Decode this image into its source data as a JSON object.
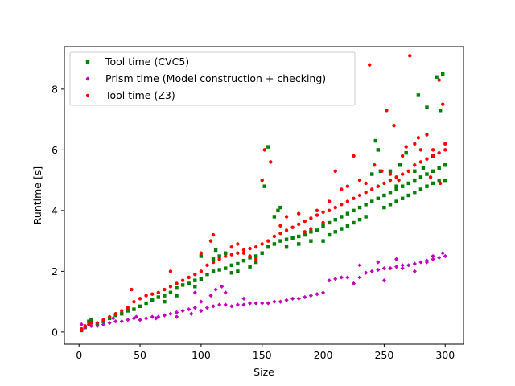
{
  "chart_data": {
    "type": "scatter",
    "title": "",
    "xlabel": "Size",
    "ylabel": "Runtime [s]",
    "xlim": [
      -12,
      315
    ],
    "ylim": [
      -0.4,
      9.4
    ],
    "xticks": [
      0,
      50,
      100,
      150,
      200,
      250,
      300
    ],
    "yticks": [
      0,
      2,
      4,
      6,
      8
    ],
    "grid": false,
    "legend_position": "top-left",
    "series": [
      {
        "name": "Tool time (CVC5)",
        "color": "#008000",
        "marker": "square",
        "points": [
          [
            2,
            0.05
          ],
          [
            5,
            0.15
          ],
          [
            8,
            0.35
          ],
          [
            10,
            0.4
          ],
          [
            15,
            0.25
          ],
          [
            20,
            0.35
          ],
          [
            25,
            0.45
          ],
          [
            30,
            0.55
          ],
          [
            35,
            0.6
          ],
          [
            40,
            0.7
          ],
          [
            45,
            0.75
          ],
          [
            50,
            0.85
          ],
          [
            55,
            0.95
          ],
          [
            60,
            1.05
          ],
          [
            65,
            1.15
          ],
          [
            70,
            1.2
          ],
          [
            75,
            1.3
          ],
          [
            80,
            1.45
          ],
          [
            85,
            1.55
          ],
          [
            90,
            1.6
          ],
          [
            95,
            1.7
          ],
          [
            100,
            1.75
          ],
          [
            105,
            1.9
          ],
          [
            110,
            2.0
          ],
          [
            115,
            2.05
          ],
          [
            120,
            2.1
          ],
          [
            125,
            2.2
          ],
          [
            130,
            2.25
          ],
          [
            135,
            2.35
          ],
          [
            140,
            2.45
          ],
          [
            145,
            2.5
          ],
          [
            150,
            2.6
          ],
          [
            155,
            2.8
          ],
          [
            160,
            2.9
          ],
          [
            165,
            3.0
          ],
          [
            170,
            3.05
          ],
          [
            175,
            3.1
          ],
          [
            180,
            3.15
          ],
          [
            185,
            3.2
          ],
          [
            190,
            3.3
          ],
          [
            195,
            3.35
          ],
          [
            200,
            3.5
          ],
          [
            205,
            3.6
          ],
          [
            210,
            3.7
          ],
          [
            215,
            3.8
          ],
          [
            220,
            3.9
          ],
          [
            225,
            4.0
          ],
          [
            230,
            4.1
          ],
          [
            235,
            4.2
          ],
          [
            240,
            4.3
          ],
          [
            245,
            4.4
          ],
          [
            250,
            4.5
          ],
          [
            255,
            4.6
          ],
          [
            260,
            4.7
          ],
          [
            265,
            4.8
          ],
          [
            270,
            4.9
          ],
          [
            275,
            5.0
          ],
          [
            280,
            5.1
          ],
          [
            285,
            5.2
          ],
          [
            290,
            5.3
          ],
          [
            295,
            5.4
          ],
          [
            300,
            5.0
          ],
          [
            155,
            6.1
          ],
          [
            152,
            4.8
          ],
          [
            160,
            3.8
          ],
          [
            163,
            4.0
          ],
          [
            165,
            4.1
          ],
          [
            243,
            6.3
          ],
          [
            245,
            6.0
          ],
          [
            260,
            4.8
          ],
          [
            263,
            5.5
          ],
          [
            268,
            5.9
          ],
          [
            278,
            7.8
          ],
          [
            285,
            7.4
          ],
          [
            293,
            8.4
          ],
          [
            296,
            7.3
          ],
          [
            298,
            8.5
          ],
          [
            300,
            5.5
          ],
          [
            240,
            5.2
          ],
          [
            247,
            5.3
          ],
          [
            255,
            5.3
          ],
          [
            275,
            5.3
          ],
          [
            282,
            5.4
          ],
          [
            290,
            5.8
          ],
          [
            110,
            2.4
          ],
          [
            115,
            2.5
          ],
          [
            120,
            2.6
          ],
          [
            100,
            2.5
          ],
          [
            112,
            2.7
          ],
          [
            70,
            1.0
          ],
          [
            80,
            1.2
          ],
          [
            95,
            1.5
          ],
          [
            125,
            1.95
          ],
          [
            130,
            2.0
          ],
          [
            140,
            2.15
          ],
          [
            145,
            2.3
          ],
          [
            170,
            2.8
          ],
          [
            180,
            2.9
          ],
          [
            190,
            3.0
          ],
          [
            200,
            3.0
          ],
          [
            205,
            3.2
          ],
          [
            210,
            3.3
          ],
          [
            215,
            3.4
          ],
          [
            220,
            3.5
          ],
          [
            225,
            3.6
          ],
          [
            230,
            3.7
          ],
          [
            235,
            3.8
          ],
          [
            250,
            4.1
          ],
          [
            255,
            4.2
          ],
          [
            260,
            4.3
          ],
          [
            265,
            4.4
          ],
          [
            270,
            4.5
          ],
          [
            275,
            4.6
          ],
          [
            280,
            4.7
          ],
          [
            285,
            4.8
          ],
          [
            290,
            4.9
          ],
          [
            295,
            5.0
          ]
        ]
      },
      {
        "name": "Prism time (Model construction + checking)",
        "color": "#bf00bf",
        "marker": "diamond",
        "points": [
          [
            2,
            0.25
          ],
          [
            5,
            0.15
          ],
          [
            10,
            0.2
          ],
          [
            15,
            0.2
          ],
          [
            20,
            0.25
          ],
          [
            25,
            0.3
          ],
          [
            30,
            0.35
          ],
          [
            35,
            0.35
          ],
          [
            40,
            0.4
          ],
          [
            45,
            0.45
          ],
          [
            50,
            0.4
          ],
          [
            55,
            0.45
          ],
          [
            60,
            0.5
          ],
          [
            65,
            0.5
          ],
          [
            70,
            0.55
          ],
          [
            75,
            0.6
          ],
          [
            80,
            0.65
          ],
          [
            85,
            0.7
          ],
          [
            90,
            0.75
          ],
          [
            95,
            0.8
          ],
          [
            100,
            0.7
          ],
          [
            105,
            0.8
          ],
          [
            110,
            0.85
          ],
          [
            115,
            0.9
          ],
          [
            120,
            0.9
          ],
          [
            125,
            0.85
          ],
          [
            130,
            0.9
          ],
          [
            135,
            0.9
          ],
          [
            140,
            0.95
          ],
          [
            145,
            0.95
          ],
          [
            150,
            0.95
          ],
          [
            155,
            0.95
          ],
          [
            160,
            1.0
          ],
          [
            165,
            1.0
          ],
          [
            170,
            1.05
          ],
          [
            175,
            1.1
          ],
          [
            180,
            1.1
          ],
          [
            185,
            1.15
          ],
          [
            190,
            1.2
          ],
          [
            195,
            1.25
          ],
          [
            200,
            1.3
          ],
          [
            205,
            1.7
          ],
          [
            210,
            1.75
          ],
          [
            215,
            1.8
          ],
          [
            220,
            1.8
          ],
          [
            225,
            1.6
          ],
          [
            230,
            1.8
          ],
          [
            235,
            1.95
          ],
          [
            240,
            2.0
          ],
          [
            245,
            2.05
          ],
          [
            250,
            2.1
          ],
          [
            255,
            2.1
          ],
          [
            260,
            2.15
          ],
          [
            265,
            2.2
          ],
          [
            270,
            2.2
          ],
          [
            275,
            2.25
          ],
          [
            280,
            2.3
          ],
          [
            285,
            2.35
          ],
          [
            290,
            2.4
          ],
          [
            295,
            2.45
          ],
          [
            300,
            2.5
          ],
          [
            28,
            0.45
          ],
          [
            47,
            0.5
          ],
          [
            63,
            0.45
          ],
          [
            80,
            0.5
          ],
          [
            92,
            0.6
          ],
          [
            100,
            1.0
          ],
          [
            108,
            1.2
          ],
          [
            112,
            1.4
          ],
          [
            117,
            1.5
          ],
          [
            95,
            1.3
          ],
          [
            120,
            1.3
          ],
          [
            135,
            1.1
          ],
          [
            230,
            2.2
          ],
          [
            245,
            2.3
          ],
          [
            255,
            2.1
          ],
          [
            260,
            2.4
          ],
          [
            275,
            2.0
          ],
          [
            250,
            1.7
          ],
          [
            265,
            2.1
          ],
          [
            285,
            2.3
          ],
          [
            290,
            2.5
          ],
          [
            298,
            2.6
          ]
        ]
      },
      {
        "name": "Tool time (Z3)",
        "color": "#ff0000",
        "marker": "circle",
        "points": [
          [
            2,
            0.1
          ],
          [
            5,
            0.2
          ],
          [
            8,
            0.25
          ],
          [
            10,
            0.3
          ],
          [
            15,
            0.3
          ],
          [
            20,
            0.4
          ],
          [
            25,
            0.5
          ],
          [
            30,
            0.6
          ],
          [
            35,
            0.7
          ],
          [
            40,
            0.8
          ],
          [
            45,
            1.0
          ],
          [
            50,
            1.1
          ],
          [
            55,
            1.2
          ],
          [
            60,
            1.25
          ],
          [
            65,
            1.3
          ],
          [
            70,
            1.4
          ],
          [
            75,
            1.5
          ],
          [
            80,
            1.6
          ],
          [
            85,
            1.7
          ],
          [
            90,
            1.8
          ],
          [
            95,
            1.9
          ],
          [
            100,
            2.0
          ],
          [
            105,
            2.2
          ],
          [
            110,
            2.3
          ],
          [
            115,
            2.4
          ],
          [
            120,
            2.5
          ],
          [
            125,
            2.55
          ],
          [
            130,
            2.6
          ],
          [
            135,
            2.7
          ],
          [
            140,
            2.75
          ],
          [
            145,
            2.8
          ],
          [
            150,
            2.9
          ],
          [
            155,
            3.0
          ],
          [
            160,
            3.15
          ],
          [
            165,
            3.25
          ],
          [
            170,
            3.35
          ],
          [
            175,
            3.45
          ],
          [
            180,
            3.55
          ],
          [
            185,
            3.65
          ],
          [
            190,
            3.75
          ],
          [
            195,
            3.85
          ],
          [
            200,
            3.95
          ],
          [
            205,
            4.0
          ],
          [
            210,
            4.1
          ],
          [
            215,
            4.2
          ],
          [
            220,
            4.3
          ],
          [
            225,
            4.4
          ],
          [
            230,
            4.5
          ],
          [
            235,
            4.6
          ],
          [
            240,
            4.7
          ],
          [
            245,
            4.8
          ],
          [
            250,
            4.9
          ],
          [
            255,
            5.0
          ],
          [
            260,
            5.1
          ],
          [
            265,
            5.2
          ],
          [
            270,
            5.3
          ],
          [
            275,
            5.5
          ],
          [
            280,
            5.6
          ],
          [
            285,
            5.7
          ],
          [
            290,
            5.8
          ],
          [
            295,
            5.9
          ],
          [
            300,
            6.0
          ],
          [
            43,
            1.4
          ],
          [
            75,
            2.0
          ],
          [
            100,
            2.6
          ],
          [
            108,
            3.0
          ],
          [
            110,
            3.2
          ],
          [
            125,
            2.8
          ],
          [
            150,
            5.0
          ],
          [
            152,
            6.0
          ],
          [
            157,
            5.6
          ],
          [
            165,
            3.5
          ],
          [
            210,
            5.3
          ],
          [
            225,
            5.8
          ],
          [
            230,
            5.0
          ],
          [
            238,
            8.8
          ],
          [
            252,
            7.3
          ],
          [
            258,
            6.8
          ],
          [
            268,
            6.1
          ],
          [
            271,
            9.1
          ],
          [
            275,
            6.2
          ],
          [
            280,
            6.0
          ],
          [
            285,
            6.5
          ],
          [
            290,
            6.0
          ],
          [
            295,
            8.3
          ],
          [
            298,
            7.5
          ],
          [
            300,
            6.2
          ],
          [
            242,
            5.5
          ],
          [
            248,
            5.3
          ],
          [
            262,
            5.0
          ],
          [
            265,
            5.8
          ],
          [
            278,
            6.4
          ],
          [
            288,
            5.1
          ],
          [
            296,
            4.9
          ],
          [
            190,
            3.4
          ],
          [
            195,
            4.0
          ],
          [
            200,
            3.6
          ],
          [
            205,
            4.3
          ],
          [
            215,
            4.7
          ],
          [
            220,
            4.8
          ],
          [
            235,
            4.9
          ],
          [
            255,
            5.2
          ],
          [
            170,
            3.8
          ],
          [
            180,
            3.9
          ],
          [
            185,
            3.3
          ],
          [
            140,
            2.5
          ],
          [
            145,
            2.4
          ],
          [
            130,
            2.9
          ],
          [
            135,
            2.6
          ]
        ]
      }
    ]
  }
}
